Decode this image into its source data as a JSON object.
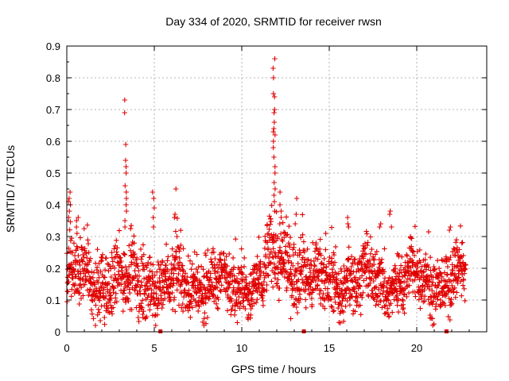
{
  "chart_data": {
    "type": "scatter",
    "title": "Day 334 of 2020, SRMTID for receiver rwsn",
    "xlabel": "GPS time / hours",
    "ylabel": "SRMTID / TECUs",
    "xlim": [
      0,
      24
    ],
    "ylim": [
      0,
      0.9
    ],
    "xticks": [
      0,
      5,
      10,
      15,
      20
    ],
    "yticks": [
      0,
      0.1,
      0.2,
      0.3,
      0.4,
      0.5,
      0.6,
      0.7,
      0.8,
      0.9
    ],
    "xtick_labels": [
      "0",
      "5",
      "10",
      "15",
      "20"
    ],
    "ytick_labels": [
      "0",
      "0.1",
      "0.2",
      "0.3",
      "0.4",
      "0.5",
      "0.6",
      "0.7",
      "0.8",
      "0.9"
    ],
    "grid": true,
    "marker": "+",
    "color": "#e00000",
    "gap_markers_x": [
      5.35,
      13.55,
      21.7
    ],
    "series": [
      {
        "name": "SRMTID",
        "segments": [
          {
            "x_start": 0.0,
            "x_end": 4.9,
            "base": 0.16,
            "spread": 0.09
          },
          {
            "x_start": 4.9,
            "x_end": 11.3,
            "base": 0.15,
            "spread": 0.08
          },
          {
            "x_start": 11.3,
            "x_end": 13.6,
            "base": 0.22,
            "spread": 0.1
          },
          {
            "x_start": 13.6,
            "x_end": 22.8,
            "base": 0.16,
            "spread": 0.08
          }
        ],
        "spikes": [
          {
            "x": 0.15,
            "values": [
              0.42,
              0.41,
              0.4,
              0.38,
              0.36,
              0.44
            ]
          },
          {
            "x": 0.6,
            "values": [
              0.35,
              0.36,
              0.33
            ]
          },
          {
            "x": 3.35,
            "values": [
              0.73,
              0.69,
              0.59,
              0.54,
              0.52,
              0.5,
              0.46,
              0.44,
              0.42,
              0.4,
              0.38,
              0.35,
              0.33
            ]
          },
          {
            "x": 4.95,
            "values": [
              0.44,
              0.42,
              0.39,
              0.36,
              0.33
            ]
          },
          {
            "x": 6.2,
            "values": [
              0.45,
              0.37,
              0.36
            ]
          },
          {
            "x": 11.85,
            "values": [
              0.86,
              0.83,
              0.8,
              0.75,
              0.74,
              0.7,
              0.69,
              0.66,
              0.64,
              0.63,
              0.62,
              0.6,
              0.58,
              0.55,
              0.52,
              0.5,
              0.47,
              0.45,
              0.43,
              0.41,
              0.38
            ]
          },
          {
            "x": 12.2,
            "values": [
              0.44,
              0.4,
              0.38,
              0.36,
              0.34
            ]
          },
          {
            "x": 13.1,
            "values": [
              0.42,
              0.37,
              0.34
            ]
          },
          {
            "x": 16.1,
            "values": [
              0.36,
              0.34,
              0.33
            ]
          },
          {
            "x": 17.9,
            "values": [
              0.34,
              0.33
            ]
          },
          {
            "x": 18.5,
            "values": [
              0.38,
              0.37,
              0.33
            ]
          },
          {
            "x": 21.9,
            "values": [
              0.33,
              0.32
            ]
          }
        ]
      }
    ]
  }
}
